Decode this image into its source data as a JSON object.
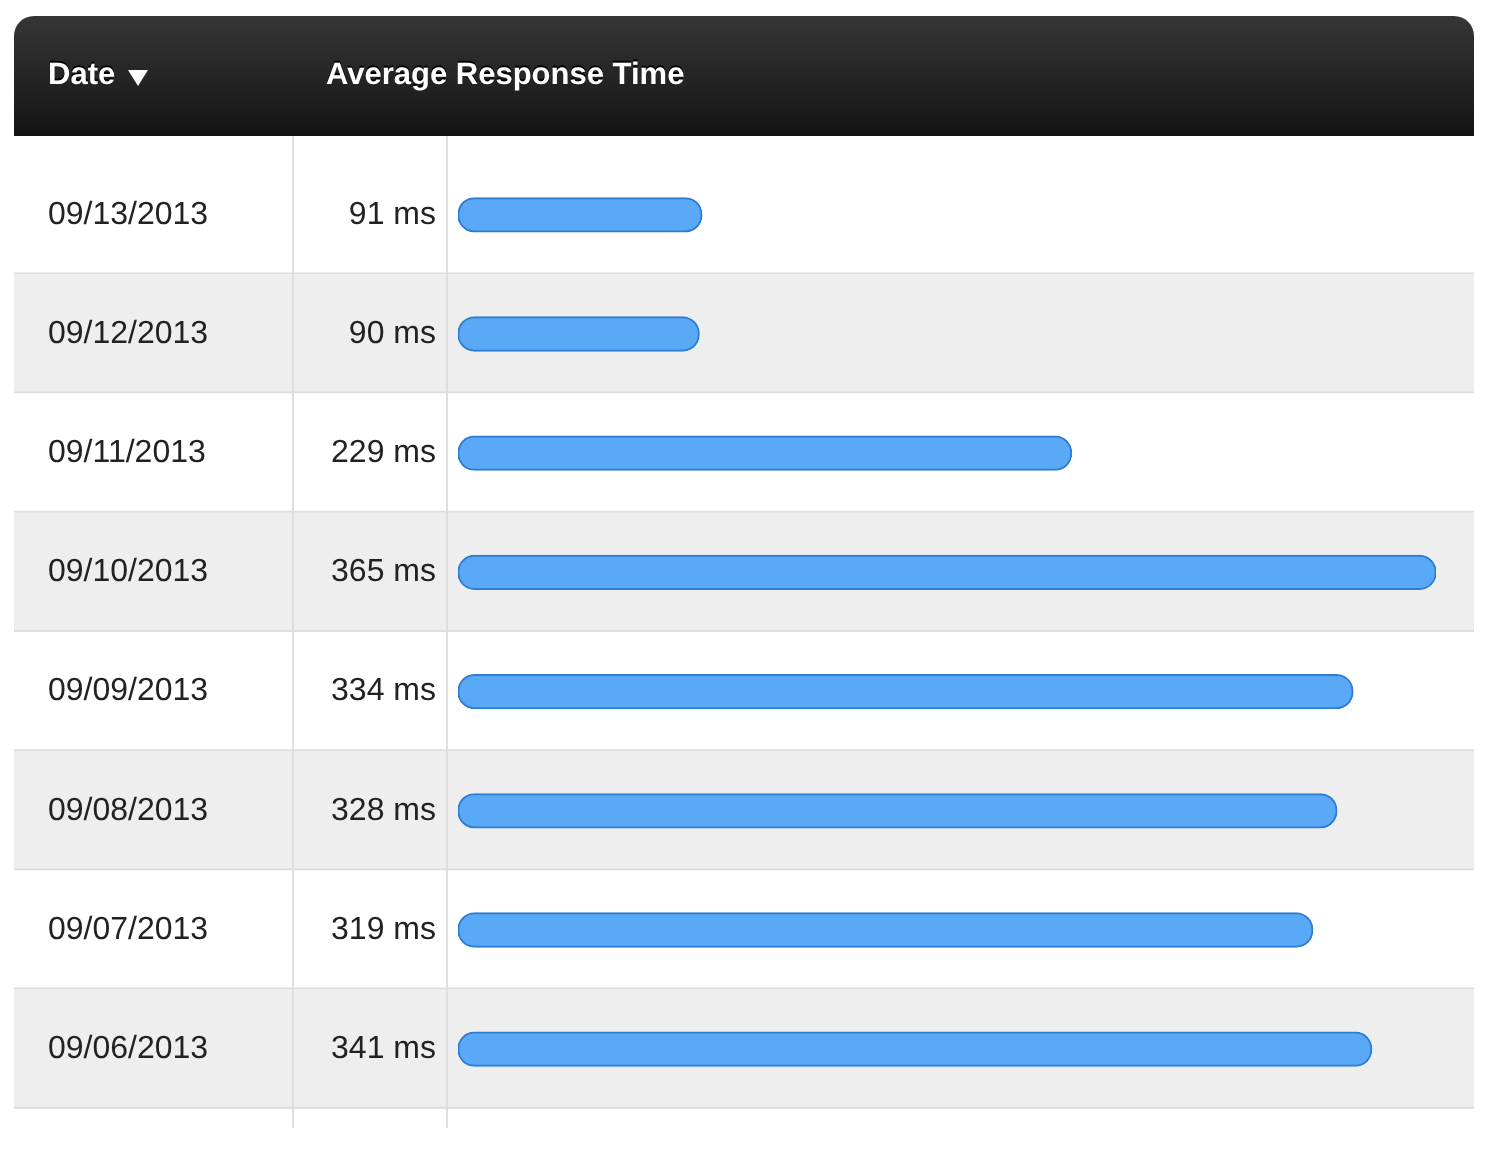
{
  "chart_data": {
    "type": "bar",
    "orientation": "horizontal",
    "ylabel": "Date",
    "xlabel": "Average Response Time",
    "categories": [
      "09/13/2013",
      "09/12/2013",
      "09/11/2013",
      "09/10/2013",
      "09/09/2013",
      "09/08/2013",
      "09/07/2013",
      "09/06/2013"
    ],
    "values": [
      91,
      90,
      229,
      365,
      334,
      328,
      319,
      341
    ],
    "value_labels": [
      "91 ms",
      "90 ms",
      "229 ms",
      "365 ms",
      "334 ms",
      "328 ms",
      "319 ms",
      "341 ms"
    ],
    "color": "#5aa9f6",
    "tick_labels": "y"
  }
}
